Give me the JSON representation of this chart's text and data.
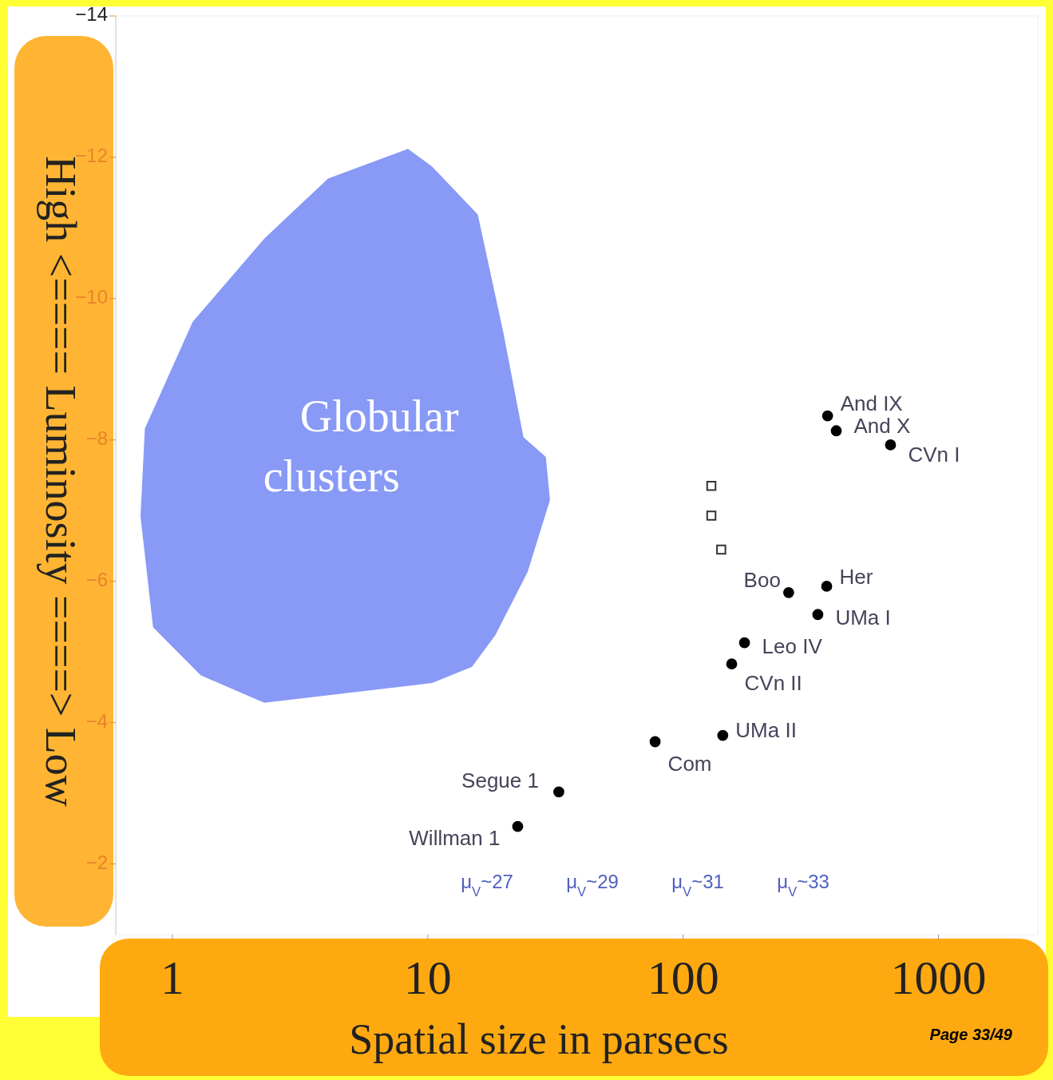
{
  "chart_data": {
    "type": "scatter",
    "xlabel": "Spatial size in parsecs",
    "ylabel": "High <==== Luminosity ====> Low",
    "log": "x",
    "xlim": [
      0.6,
      2450
    ],
    "xticks": [
      1,
      10,
      100,
      1000
    ],
    "ylim": [
      -1,
      -14
    ],
    "yticks": [
      -14,
      -12,
      -10,
      -8,
      -6,
      -4,
      -2
    ],
    "grid": false,
    "series": [
      {
        "name": "Globular clusters",
        "type": "area",
        "color": "#7b8ef5",
        "x": [
          8.36,
          10.4,
          15.7,
          19.8,
          23.7,
          29.0,
          30.1,
          24.6,
          18.4,
          14.9,
          10.4,
          2.29,
          1.29,
          0.84,
          0.75,
          0.78,
          1.2,
          2.29,
          4.07
        ],
        "values": [
          -12.12,
          -11.87,
          -11.19,
          -9.51,
          -8.04,
          -7.76,
          -7.15,
          -6.13,
          -5.24,
          -4.79,
          -4.56,
          -4.28,
          -4.67,
          -5.35,
          -6.92,
          -8.16,
          -9.67,
          -10.85,
          -11.7
        ]
      },
      {
        "name": "And IX",
        "color": "#000000",
        "marker": "circle",
        "x": [
          368
        ],
        "values": [
          -8.34
        ]
      },
      {
        "name": "And X",
        "color": "#000000",
        "marker": "circle",
        "x": [
          398
        ],
        "values": [
          -8.13
        ]
      },
      {
        "name": "CVn I",
        "color": "#000000",
        "marker": "circle",
        "x": [
          649
        ],
        "values": [
          -7.93
        ]
      },
      {
        "name": "Her",
        "color": "#000000",
        "marker": "circle",
        "x": [
          365
        ],
        "values": [
          -5.93
        ]
      },
      {
        "name": "Boo",
        "color": "#000000",
        "marker": "circle",
        "x": [
          259
        ],
        "values": [
          -5.84
        ]
      },
      {
        "name": "UMa I",
        "color": "#000000",
        "marker": "circle",
        "x": [
          337
        ],
        "values": [
          -5.53
        ]
      },
      {
        "name": "Leo IV",
        "color": "#000000",
        "marker": "circle",
        "x": [
          174
        ],
        "values": [
          -5.13
        ]
      },
      {
        "name": "CVn II",
        "color": "#000000",
        "marker": "circle",
        "x": [
          155
        ],
        "values": [
          -4.83
        ]
      },
      {
        "name": "UMa II",
        "color": "#000000",
        "marker": "circle",
        "x": [
          143
        ],
        "values": [
          -3.82
        ]
      },
      {
        "name": "Com",
        "color": "#000000",
        "marker": "circle",
        "x": [
          77.7
        ],
        "values": [
          -3.73
        ]
      },
      {
        "name": "Segue 1",
        "color": "#000000",
        "marker": "circle",
        "x": [
          32.6
        ],
        "values": [
          -3.02
        ]
      },
      {
        "name": "Willman 1",
        "color": "#000000",
        "marker": "circle",
        "x": [
          22.5
        ],
        "values": [
          -2.53
        ]
      },
      {
        "color": "#333333",
        "marker": "square",
        "x": [
          129,
          129,
          141
        ],
        "values": [
          -7.35,
          -6.93,
          -6.45
        ]
      }
    ],
    "annotations": [
      "μ$_{V}$~27",
      "μ$_{V}$~29",
      "μ$_{V}$~31",
      "μ$_{V}$~33",
      "Page 33/49"
    ]
  }
}
